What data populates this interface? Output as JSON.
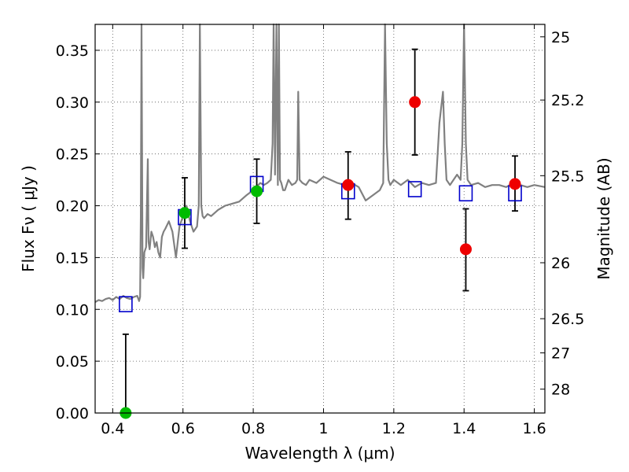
{
  "chart_data": {
    "type": "scatter",
    "title": "",
    "xlabel": "Wavelength  λ (μm)",
    "ylabel": "Flux  Fν  ( μJy )",
    "y2label": "Magnitude (AB)",
    "xlim": [
      0.35,
      1.63
    ],
    "ylim": [
      0.0,
      0.375
    ],
    "x_ticks": [
      0.4,
      0.6,
      0.8,
      1.0,
      1.2,
      1.4,
      1.6
    ],
    "x_tick_labels": [
      "0.4",
      "0.6",
      "0.8",
      "1",
      "1.2",
      "1.4",
      "1.6"
    ],
    "y_ticks": [
      0.0,
      0.05,
      0.1,
      0.15,
      0.2,
      0.25,
      0.3,
      0.35
    ],
    "y_tick_labels": [
      "0.00",
      "0.05",
      "0.10",
      "0.15",
      "0.20",
      "0.25",
      "0.30",
      "0.35"
    ],
    "y2_ticks": [
      {
        "label": "25",
        "flux": 0.363
      },
      {
        "label": "25.2",
        "flux": 0.302
      },
      {
        "label": "25.5",
        "flux": 0.229
      },
      {
        "label": "26",
        "flux": 0.145
      },
      {
        "label": "26.5",
        "flux": 0.091
      },
      {
        "label": "27",
        "flux": 0.058
      },
      {
        "label": "28",
        "flux": 0.023
      }
    ],
    "grid": true,
    "colors": {
      "spectrum": "#808080",
      "model_squares": "#0000cc",
      "green_points": "#00bb00",
      "red_points": "#ee0000",
      "error_bars": "#000000",
      "grid": "#555555"
    },
    "spectrum": {
      "x": [
        0.35,
        0.36,
        0.37,
        0.38,
        0.39,
        0.4,
        0.41,
        0.42,
        0.43,
        0.44,
        0.45,
        0.46,
        0.47,
        0.475,
        0.478,
        0.48,
        0.482,
        0.485,
        0.487,
        0.49,
        0.495,
        0.5,
        0.502,
        0.505,
        0.51,
        0.515,
        0.52,
        0.525,
        0.53,
        0.535,
        0.54,
        0.545,
        0.55,
        0.56,
        0.57,
        0.58,
        0.59,
        0.6,
        0.61,
        0.62,
        0.63,
        0.64,
        0.645,
        0.648,
        0.652,
        0.656,
        0.66,
        0.665,
        0.67,
        0.68,
        0.7,
        0.72,
        0.74,
        0.76,
        0.78,
        0.8,
        0.82,
        0.83,
        0.84,
        0.85,
        0.855,
        0.858,
        0.862,
        0.866,
        0.87,
        0.873,
        0.876,
        0.88,
        0.885,
        0.89,
        0.9,
        0.91,
        0.92,
        0.925,
        0.928,
        0.932,
        0.94,
        0.95,
        0.96,
        0.98,
        1.0,
        1.02,
        1.04,
        1.06,
        1.08,
        1.1,
        1.12,
        1.14,
        1.16,
        1.17,
        1.175,
        1.18,
        1.185,
        1.19,
        1.2,
        1.22,
        1.24,
        1.26,
        1.28,
        1.3,
        1.32,
        1.33,
        1.34,
        1.345,
        1.35,
        1.36,
        1.38,
        1.39,
        1.395,
        1.4,
        1.405,
        1.41,
        1.42,
        1.44,
        1.46,
        1.48,
        1.5,
        1.52,
        1.54,
        1.56,
        1.58,
        1.6,
        1.63
      ],
      "y": [
        0.107,
        0.109,
        0.108,
        0.11,
        0.111,
        0.109,
        0.112,
        0.11,
        0.113,
        0.111,
        0.11,
        0.112,
        0.113,
        0.108,
        0.112,
        0.19,
        0.38,
        0.14,
        0.13,
        0.155,
        0.16,
        0.245,
        0.165,
        0.158,
        0.175,
        0.17,
        0.16,
        0.165,
        0.155,
        0.15,
        0.17,
        0.175,
        0.178,
        0.185,
        0.175,
        0.15,
        0.18,
        0.19,
        0.2,
        0.185,
        0.175,
        0.18,
        0.2,
        0.38,
        0.2,
        0.19,
        0.188,
        0.19,
        0.192,
        0.19,
        0.196,
        0.2,
        0.202,
        0.204,
        0.21,
        0.215,
        0.222,
        0.22,
        0.222,
        0.225,
        0.26,
        0.38,
        0.23,
        0.38,
        0.22,
        0.38,
        0.225,
        0.222,
        0.215,
        0.215,
        0.225,
        0.22,
        0.222,
        0.225,
        0.31,
        0.225,
        0.222,
        0.22,
        0.225,
        0.222,
        0.228,
        0.225,
        0.222,
        0.22,
        0.222,
        0.218,
        0.205,
        0.21,
        0.215,
        0.222,
        0.38,
        0.26,
        0.225,
        0.22,
        0.225,
        0.22,
        0.225,
        0.218,
        0.222,
        0.22,
        0.222,
        0.28,
        0.31,
        0.26,
        0.225,
        0.22,
        0.23,
        0.225,
        0.26,
        0.38,
        0.26,
        0.225,
        0.22,
        0.222,
        0.218,
        0.22,
        0.22,
        0.218,
        0.222,
        0.22,
        0.218,
        0.22,
        0.218
      ]
    },
    "model_squares": [
      {
        "x": 0.437,
        "y": 0.105
      },
      {
        "x": 0.605,
        "y": 0.189
      },
      {
        "x": 0.81,
        "y": 0.221
      },
      {
        "x": 1.07,
        "y": 0.214
      },
      {
        "x": 1.26,
        "y": 0.216
      },
      {
        "x": 1.405,
        "y": 0.212
      },
      {
        "x": 1.545,
        "y": 0.212
      }
    ],
    "green_points": [
      {
        "x": 0.437,
        "y": 0.0,
        "err_low": 0.0,
        "err_high": 0.076
      },
      {
        "x": 0.605,
        "y": 0.193,
        "err_low": 0.159,
        "err_high": 0.227
      },
      {
        "x": 0.81,
        "y": 0.214,
        "err_low": 0.183,
        "err_high": 0.245
      }
    ],
    "red_points": [
      {
        "x": 1.07,
        "y": 0.22,
        "err_low": 0.187,
        "err_high": 0.252
      },
      {
        "x": 1.26,
        "y": 0.3,
        "err_low": 0.249,
        "err_high": 0.351
      },
      {
        "x": 1.405,
        "y": 0.158,
        "err_low": 0.118,
        "err_high": 0.197
      },
      {
        "x": 1.545,
        "y": 0.221,
        "err_low": 0.195,
        "err_high": 0.248
      }
    ]
  }
}
